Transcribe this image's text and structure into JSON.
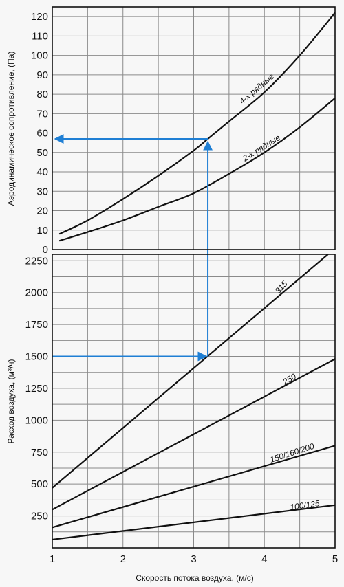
{
  "colors": {
    "background": "#f7f7f7",
    "grid": "#8a8a8a",
    "frame": "#111111",
    "curve": "#111111",
    "arrow": "#1f7fd4"
  },
  "chart_data": [
    {
      "type": "line",
      "ylabel": "Аэродинамическое сопротивление, (Па)",
      "xlim": [
        1,
        5
      ],
      "ylim": [
        0,
        125
      ],
      "y_ticks": [
        0,
        10,
        20,
        30,
        40,
        50,
        60,
        70,
        80,
        90,
        100,
        110,
        120
      ],
      "grid": true,
      "series": [
        {
          "name": "4-х рядные",
          "x": [
            1.1,
            1.5,
            2,
            2.5,
            3,
            3.2,
            3.5,
            4,
            4.5,
            5
          ],
          "y": [
            8,
            15,
            26,
            38,
            51,
            57,
            66,
            81,
            100,
            122
          ]
        },
        {
          "name": "2-х рядные",
          "x": [
            1.1,
            1.5,
            2,
            2.5,
            3,
            3.5,
            4,
            4.5,
            5
          ],
          "y": [
            4.5,
            9,
            15,
            22,
            29,
            39,
            50,
            63,
            78
          ]
        }
      ],
      "annotation": {
        "type": "arrow",
        "from": [
          3.2,
          57
        ],
        "to": [
          1,
          57
        ]
      }
    },
    {
      "type": "line",
      "xlabel": "Скорость потока воздуха, (м/с)",
      "ylabel": "Расход воздуха, (м³/ч)",
      "xlim": [
        1,
        5
      ],
      "ylim": [
        0,
        2300
      ],
      "x_ticks": [
        1,
        2,
        3,
        4,
        5
      ],
      "y_ticks": [
        250,
        500,
        750,
        1000,
        1250,
        1500,
        1750,
        2000,
        2250
      ],
      "grid": true,
      "series": [
        {
          "name": "315",
          "x": [
            1,
            4.9
          ],
          "y": [
            470,
            2300
          ]
        },
        {
          "name": "250",
          "x": [
            1,
            5
          ],
          "y": [
            300,
            1480
          ]
        },
        {
          "name": "150/160/200",
          "x": [
            1,
            5
          ],
          "y": [
            160,
            800
          ]
        },
        {
          "name": "100/125",
          "x": [
            1,
            5
          ],
          "y": [
            65,
            335
          ]
        }
      ],
      "annotation": {
        "type": "arrow-path",
        "points": [
          [
            1,
            1500
          ],
          [
            3.2,
            1500
          ],
          [
            3.2,
            57
          ]
        ]
      }
    }
  ]
}
